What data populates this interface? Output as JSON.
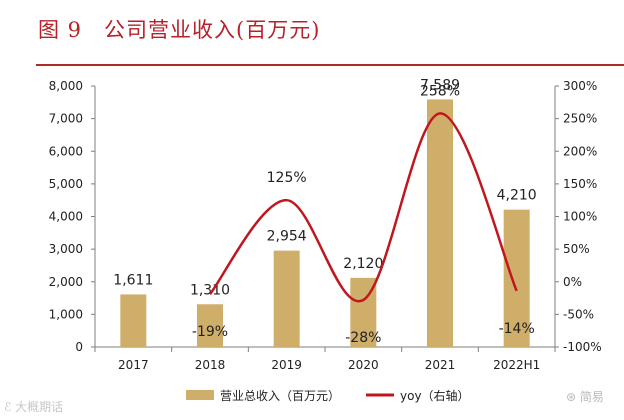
{
  "title": "图 9　公司营业收入(百万元)",
  "colors": {
    "bar": "#cfae69",
    "line": "#c0171f",
    "title": "#b8202a",
    "rule": "#b02a2a",
    "axis": "#7f7f7f"
  },
  "watermarks": {
    "left": "ℰ 大概期话",
    "right": "⊛ 简易"
  },
  "chart_data": {
    "type": "bar",
    "categories": [
      "2017",
      "2018",
      "2019",
      "2020",
      "2021",
      "2022H1"
    ],
    "series": [
      {
        "name": "营业总收入（百万元）",
        "type": "bar",
        "axis": "left",
        "values": [
          1611,
          1310,
          2954,
          2120,
          7589,
          4210
        ],
        "labels": [
          "1,611",
          "1,310",
          "2,954",
          "2,120",
          "7,589",
          "4,210"
        ]
      },
      {
        "name": "yoy（右轴）",
        "type": "line",
        "axis": "right",
        "values": [
          -19,
          125,
          -28,
          258,
          -14
        ],
        "x": [
          "2018",
          "2019",
          "2020",
          "2021",
          "2022H1"
        ],
        "labels": [
          "-19%",
          "125%",
          "-28%",
          "258%",
          "-14%"
        ]
      }
    ],
    "y_left": {
      "min": 0,
      "max": 8000,
      "ticks": [
        "0",
        "1,000",
        "2,000",
        "3,000",
        "4,000",
        "5,000",
        "6,000",
        "7,000",
        "8,000"
      ]
    },
    "y_right": {
      "min": -100,
      "max": 300,
      "ticks": [
        "-100%",
        "-50%",
        "0%",
        "50%",
        "100%",
        "150%",
        "200%",
        "250%",
        "300%"
      ]
    },
    "grid": false,
    "legend": "bottom"
  }
}
